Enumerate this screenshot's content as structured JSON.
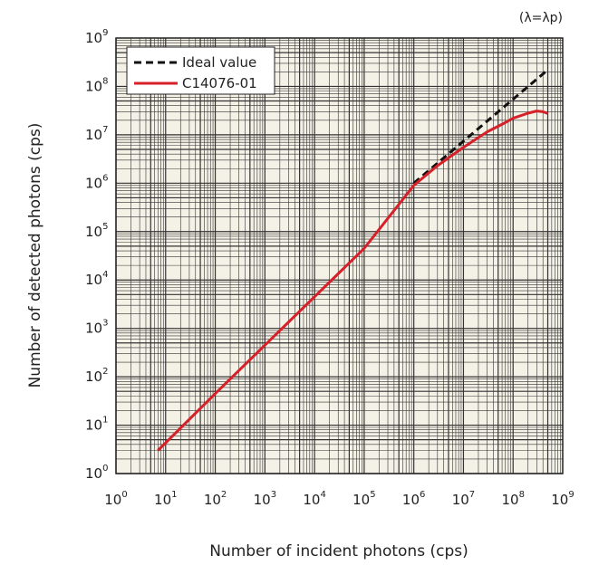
{
  "chart_data": {
    "type": "line",
    "title": "",
    "annotation": "(λ=λp)",
    "xlabel": "Number of incident photons (cps)",
    "ylabel": "Number of detected photons (cps)",
    "xscale": "log",
    "yscale": "log",
    "xlim": [
      1,
      1000000000
    ],
    "ylim": [
      1,
      1000000000
    ],
    "x_ticks": [
      {
        "base": "10",
        "exp": "0"
      },
      {
        "base": "10",
        "exp": "1"
      },
      {
        "base": "10",
        "exp": "2"
      },
      {
        "base": "10",
        "exp": "3"
      },
      {
        "base": "10",
        "exp": "4"
      },
      {
        "base": "10",
        "exp": "5"
      },
      {
        "base": "10",
        "exp": "6"
      },
      {
        "base": "10",
        "exp": "7"
      },
      {
        "base": "10",
        "exp": "8"
      },
      {
        "base": "10",
        "exp": "9"
      }
    ],
    "y_ticks": [
      {
        "base": "10",
        "exp": "0"
      },
      {
        "base": "10",
        "exp": "1"
      },
      {
        "base": "10",
        "exp": "2"
      },
      {
        "base": "10",
        "exp": "3"
      },
      {
        "base": "10",
        "exp": "4"
      },
      {
        "base": "10",
        "exp": "5"
      },
      {
        "base": "10",
        "exp": "6"
      },
      {
        "base": "10",
        "exp": "7"
      },
      {
        "base": "10",
        "exp": "8"
      },
      {
        "base": "10",
        "exp": "9"
      }
    ],
    "grid": true,
    "legend_position": "top-left",
    "plot_background": "#f4f1e6",
    "series": [
      {
        "name": "Ideal value",
        "color": "#111111",
        "style": "dashed",
        "x": [
          1000000,
          500000000
        ],
        "y": [
          1000000,
          220000000
        ]
      },
      {
        "name": "C14076-01",
        "color": "#d6212a",
        "style": "solid",
        "x": [
          7,
          100,
          1000,
          10000,
          100000,
          1000000,
          3000000,
          10000000,
          30000000,
          60000000,
          100000000,
          200000000,
          300000000,
          400000000,
          500000000
        ],
        "y": [
          3,
          45,
          450,
          4500,
          45000,
          900000,
          2300000,
          5500000,
          11500000,
          16500000,
          22000000,
          28000000,
          31000000,
          30000000,
          27500000
        ]
      }
    ]
  }
}
